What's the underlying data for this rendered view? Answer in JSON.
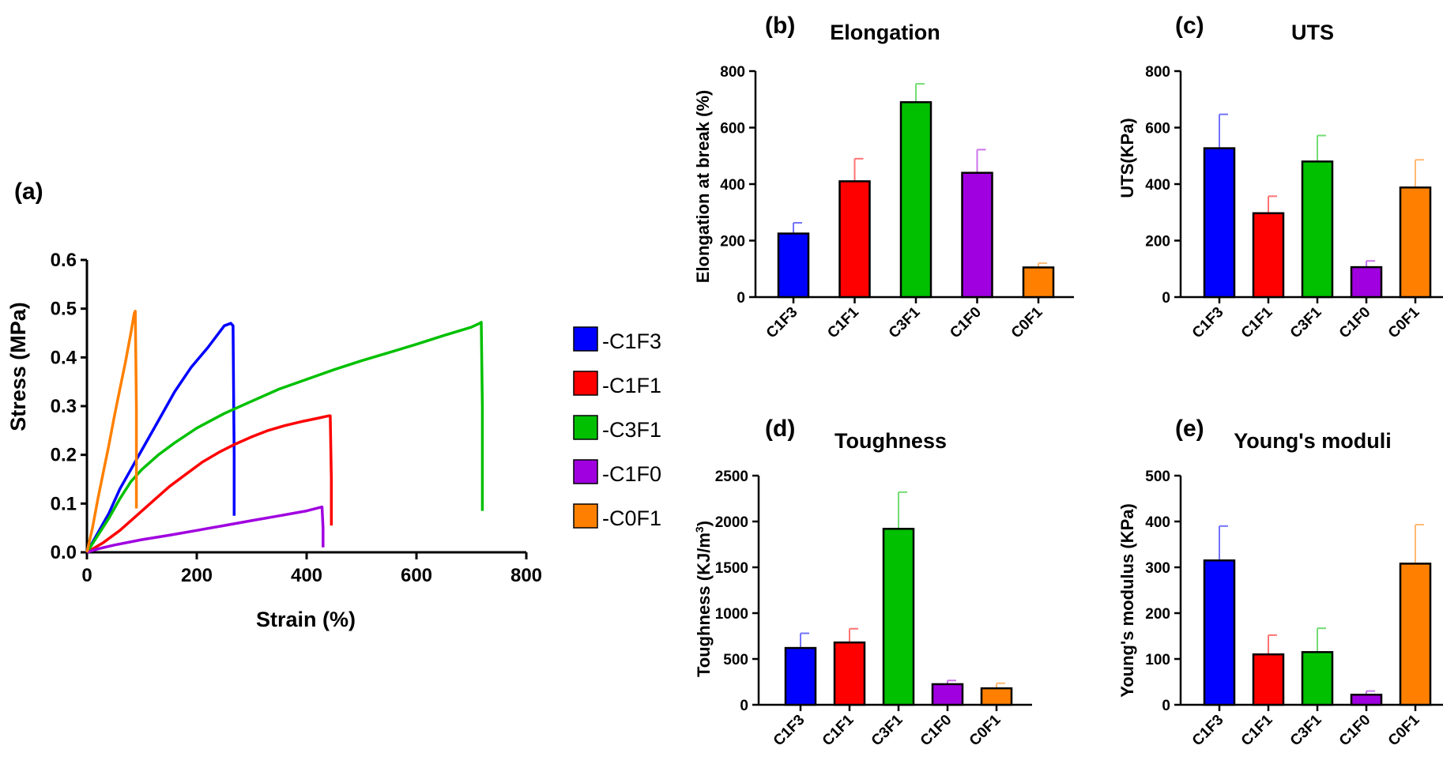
{
  "chart_data": [
    {
      "panel": "(a)",
      "type": "line",
      "title": "",
      "xlabel": "Strain (%)",
      "ylabel": "Stress (MPa)",
      "xlim": [
        0,
        800
      ],
      "ylim": [
        0,
        0.6
      ],
      "xticks": [
        "0",
        "200",
        "400",
        "600",
        "800"
      ],
      "yticks": [
        "0.0",
        "0.1",
        "0.2",
        "0.3",
        "0.4",
        "0.5",
        "0.6"
      ],
      "legend_position": "right",
      "series": [
        {
          "name": "-C1F3",
          "color": "#0000FF",
          "x": [
            0,
            20,
            40,
            60,
            80,
            100,
            130,
            160,
            190,
            220,
            250,
            262,
            266,
            268,
            268
          ],
          "y": [
            0,
            0.04,
            0.08,
            0.13,
            0.17,
            0.21,
            0.27,
            0.33,
            0.38,
            0.42,
            0.465,
            0.47,
            0.465,
            0.2,
            0.075
          ]
        },
        {
          "name": "-C1F1",
          "color": "#FF0000",
          "x": [
            0,
            30,
            60,
            90,
            120,
            150,
            180,
            210,
            240,
            270,
            300,
            330,
            360,
            390,
            420,
            440,
            443,
            445,
            445
          ],
          "y": [
            0,
            0.02,
            0.045,
            0.075,
            0.105,
            0.135,
            0.16,
            0.185,
            0.205,
            0.222,
            0.237,
            0.25,
            0.26,
            0.268,
            0.275,
            0.28,
            0.28,
            0.15,
            0.055
          ]
        },
        {
          "name": "-C3F1",
          "color": "#00C000",
          "x": [
            0,
            20,
            40,
            60,
            80,
            100,
            130,
            160,
            200,
            250,
            300,
            350,
            400,
            450,
            500,
            550,
            600,
            650,
            700,
            715,
            718,
            720,
            720
          ],
          "y": [
            0,
            0.035,
            0.07,
            0.11,
            0.145,
            0.17,
            0.2,
            0.225,
            0.255,
            0.285,
            0.31,
            0.335,
            0.355,
            0.375,
            0.393,
            0.41,
            0.427,
            0.445,
            0.462,
            0.47,
            0.472,
            0.3,
            0.085
          ]
        },
        {
          "name": "-C1F0",
          "color": "#A000E0",
          "x": [
            0,
            20,
            50,
            100,
            150,
            200,
            250,
            300,
            350,
            400,
            428,
            430,
            430
          ],
          "y": [
            0,
            0.007,
            0.015,
            0.026,
            0.035,
            0.045,
            0.055,
            0.065,
            0.075,
            0.085,
            0.093,
            0.05,
            0.01
          ]
        },
        {
          "name": "-C0F1",
          "color": "#FF8000",
          "x": [
            0,
            10,
            20,
            30,
            40,
            50,
            60,
            70,
            80,
            86,
            88,
            90,
            90
          ],
          "y": [
            0,
            0.05,
            0.11,
            0.165,
            0.22,
            0.28,
            0.335,
            0.39,
            0.45,
            0.49,
            0.495,
            0.3,
            0.09
          ]
        }
      ]
    },
    {
      "panel": "(b)",
      "type": "bar",
      "title": "Elongation",
      "xlabel": "",
      "ylabel": "Elongation at break (%)",
      "ylim": [
        0,
        800
      ],
      "yticks": [
        "0",
        "200",
        "400",
        "600",
        "800"
      ],
      "categories": [
        "C1F3",
        "C1F1",
        "C3F1",
        "C1F0",
        "C0F1"
      ],
      "values": [
        225,
        410,
        690,
        440,
        105
      ],
      "errors": [
        38,
        80,
        65,
        82,
        15
      ],
      "colors": [
        "#0000FF",
        "#FF0000",
        "#00C000",
        "#A000E0",
        "#FF8000"
      ]
    },
    {
      "panel": "(c)",
      "type": "bar",
      "title": "UTS",
      "xlabel": "",
      "ylabel": "UTS(KPa)",
      "ylim": [
        0,
        800
      ],
      "yticks": [
        "0",
        "200",
        "400",
        "600",
        "800"
      ],
      "categories": [
        "C1F3",
        "C1F1",
        "C3F1",
        "C1F0",
        "C0F1"
      ],
      "values": [
        527,
        297,
        480,
        106,
        388
      ],
      "errors": [
        120,
        60,
        92,
        22,
        98
      ],
      "colors": [
        "#0000FF",
        "#FF0000",
        "#00C000",
        "#A000E0",
        "#FF8000"
      ]
    },
    {
      "panel": "(d)",
      "type": "bar",
      "title": "Toughness",
      "xlabel": "",
      "ylabel": "Toughness (KJ/m",
      "ylabel_sup": "3",
      "ylabel_end": ")",
      "ylim": [
        0,
        2500
      ],
      "yticks": [
        "0",
        "500",
        "1000",
        "1500",
        "2000",
        "2500"
      ],
      "categories": [
        "C1F3",
        "C1F1",
        "C3F1",
        "C1F0",
        "C0F1"
      ],
      "values": [
        620,
        680,
        1920,
        225,
        180
      ],
      "errors": [
        160,
        150,
        400,
        40,
        55
      ],
      "colors": [
        "#0000FF",
        "#FF0000",
        "#00C000",
        "#A000E0",
        "#FF8000"
      ]
    },
    {
      "panel": "(e)",
      "type": "bar",
      "title": "Young's moduli",
      "xlabel": "",
      "ylabel": "Young's modulus (KPa)",
      "ylim": [
        0,
        500
      ],
      "yticks": [
        "0",
        "100",
        "200",
        "300",
        "400",
        "500"
      ],
      "categories": [
        "C1F3",
        "C1F1",
        "C3F1",
        "C1F0",
        "C0F1"
      ],
      "values": [
        315,
        110,
        115,
        22,
        308
      ],
      "errors": [
        75,
        42,
        52,
        8,
        85
      ],
      "colors": [
        "#0000FF",
        "#FF0000",
        "#00C000",
        "#A000E0",
        "#FF8000"
      ]
    }
  ]
}
